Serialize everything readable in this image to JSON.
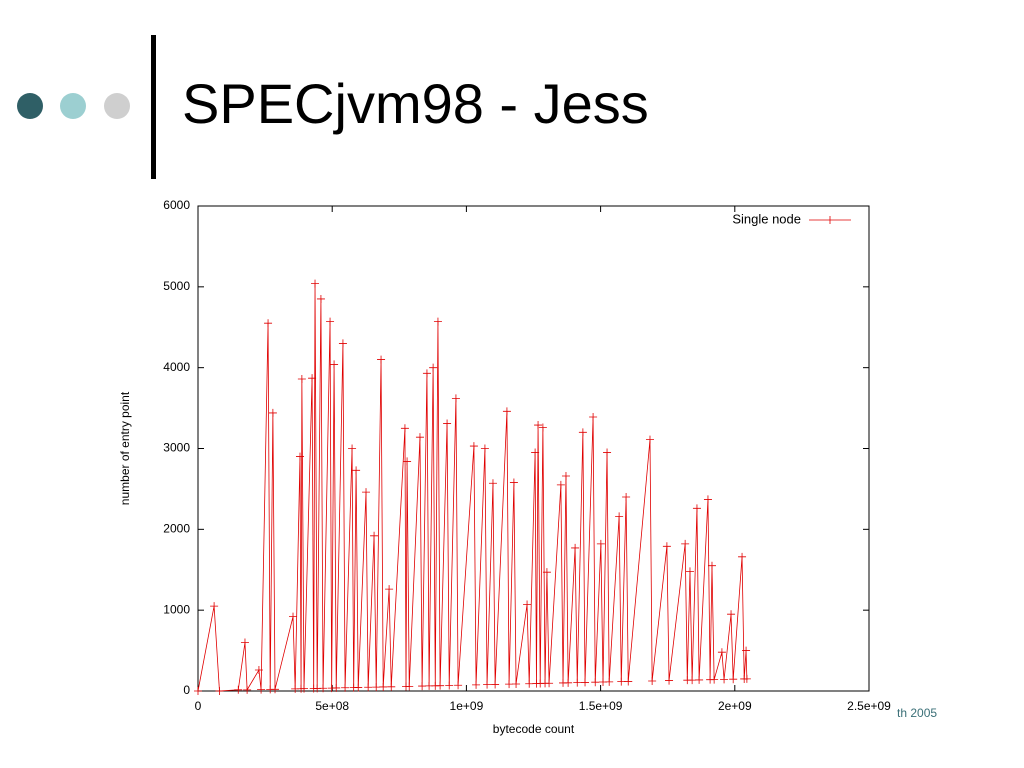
{
  "slide": {
    "title": "SPECjvm98 - Jess",
    "footer": "th 2005"
  },
  "chart_data": {
    "type": "line",
    "xlabel": "bytecode count",
    "ylabel": "number of entry point",
    "legend": "top-right",
    "xlim": [
      0,
      2500000000
    ],
    "xticks": [
      0,
      {
        "value": 500000000,
        "label": "5e+08"
      },
      {
        "value": 1000000000,
        "label": "1e+09"
      },
      {
        "value": 1500000000,
        "label": "1.5e+09"
      },
      {
        "value": 2000000000,
        "label": "2e+09"
      },
      {
        "value": 2500000000,
        "label": "2.5e+09"
      }
    ],
    "ylim": [
      0,
      6000
    ],
    "yticks": [
      0,
      1000,
      2000,
      3000,
      4000,
      5000,
      6000
    ],
    "series": [
      {
        "name": "Single node",
        "color": "#e00000",
        "x": [
          0,
          60000000.0,
          80000000.0,
          150000000.0,
          175000000.0,
          183000000.0,
          227000000.0,
          235000000.0,
          261000000.0,
          269000000.0,
          279000000.0,
          287000000.0,
          354000000.0,
          362000000.0,
          380000000.0,
          384000000.0,
          387000000.0,
          395000000.0,
          425000000.0,
          431000000.0,
          436000000.0,
          444000000.0,
          458000000.0,
          466000000.0,
          492000000.0,
          498000000.0,
          507000000.0,
          515000000.0,
          540000000.0,
          548000000.0,
          574000000.0,
          580000000.0,
          589000000.0,
          597000000.0,
          626000000.0,
          634000000.0,
          656000000.0,
          664000000.0,
          682000000.0,
          690000000.0,
          712000000.0,
          720000000.0,
          771000000.0,
          775000000.0,
          779000000.0,
          787000000.0,
          827000000.0,
          835000000.0,
          853000000.0,
          861000000.0,
          876000000.0,
          884000000.0,
          894000000.0,
          902000000.0,
          928000000.0,
          936000000.0,
          961000000.0,
          969000000.0,
          1028000000.0,
          1036000000.0,
          1069000000.0,
          1077000000.0,
          1099000000.0,
          1107000000.0,
          1151000000.0,
          1159000000.0,
          1177000000.0,
          1185000000.0,
          1226000000.0,
          1234000000.0,
          1256000000.0,
          1261000000.0,
          1267000000.0,
          1275000000.0,
          1285000000.0,
          1293000000.0,
          1300000000.0,
          1308000000.0,
          1352000000.0,
          1360000000.0,
          1371000000.0,
          1379000000.0,
          1405000000.0,
          1413000000.0,
          1434000000.0,
          1442000000.0,
          1472000000.0,
          1480000000.0,
          1501000000.0,
          1509000000.0,
          1524000000.0,
          1532000000.0,
          1569000000.0,
          1577000000.0,
          1595000000.0,
          1603000000.0,
          1684000000.0,
          1692000000.0,
          1747000000.0,
          1755000000.0,
          1815000000.0,
          1823000000.0,
          1833000000.0,
          1841000000.0,
          1859000000.0,
          1867000000.0,
          1900000000.0,
          1908000000.0,
          1915000000.0,
          1923000000.0,
          1952000000.0,
          1960000000.0,
          1986000000.0,
          1994000000.0,
          2027000000.0,
          2035000000.0,
          2042000000.0,
          2045000000.0
        ],
        "values": [
          0,
          1050,
          0,
          15,
          600,
          14,
          260,
          17,
          4550,
          20,
          3440,
          21,
          920,
          26,
          2900,
          28,
          3860,
          29,
          3870,
          31,
          5040,
          32,
          4850,
          34,
          4570,
          36,
          4040,
          38,
          4300,
          40,
          3000,
          42,
          2730,
          44,
          2460,
          46,
          1920,
          48,
          4100,
          50,
          1260,
          52,
          3250,
          56,
          2840,
          57,
          3140,
          61,
          3930,
          63,
          4000,
          64,
          4570,
          66,
          3310,
          68,
          3620,
          71,
          3030,
          76,
          3000,
          79,
          2570,
          81,
          3460,
          85,
          2580,
          87,
          1070,
          90,
          2950,
          92,
          3290,
          93,
          3260,
          95,
          1470,
          96,
          2550,
          100,
          2660,
          101,
          1770,
          104,
          3200,
          106,
          3390,
          109,
          1820,
          111,
          2950,
          113,
          2160,
          116,
          2400,
          118,
          3110,
          124,
          1790,
          129,
          1820,
          134,
          1480,
          135,
          2260,
          137,
          2370,
          140,
          1550,
          141,
          480,
          144,
          950,
          146,
          1660,
          149,
          500,
          150
        ]
      }
    ]
  }
}
